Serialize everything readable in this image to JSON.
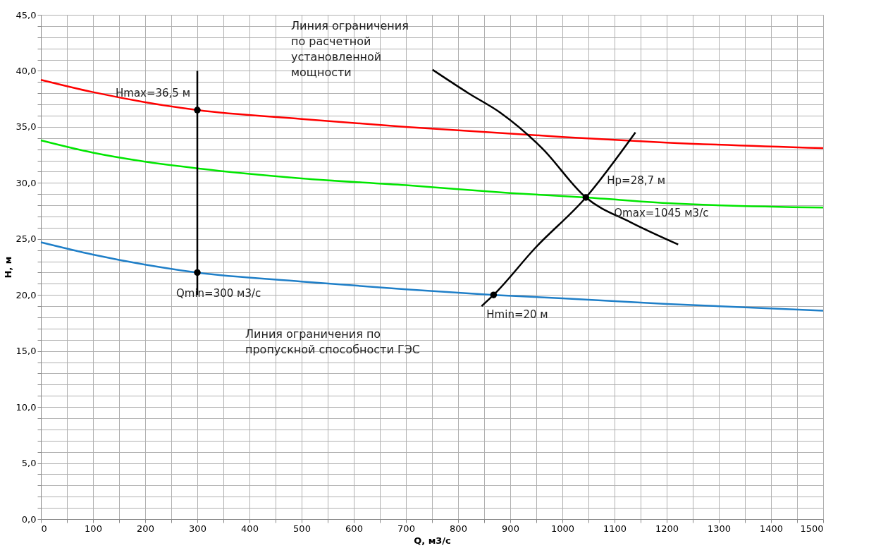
{
  "chart_data": {
    "type": "line",
    "xlabel": "Q, м3/с",
    "ylabel": "H, м",
    "xlim": [
      0,
      1500
    ],
    "ylim": [
      0,
      45
    ],
    "grid": true,
    "line_style": "solid",
    "xticks": [
      0,
      {
        "value": 50,
        "label": null
      },
      100,
      {
        "value": 150,
        "label": null
      },
      200,
      {
        "value": 250,
        "label": null
      },
      300,
      {
        "value": 350,
        "label": null
      },
      400,
      {
        "value": 450,
        "label": null
      },
      500,
      {
        "value": 550,
        "label": null
      },
      600,
      {
        "value": 650,
        "label": null
      },
      700,
      {
        "value": 750,
        "label": null
      },
      800,
      {
        "value": 850,
        "label": null
      },
      900,
      {
        "value": 950,
        "label": null
      },
      1000,
      {
        "value": 1050,
        "label": null
      },
      1100,
      {
        "value": 1150,
        "label": null
      },
      1200,
      {
        "value": 1250,
        "label": null
      },
      1300,
      {
        "value": 1350,
        "label": null
      },
      1400,
      {
        "value": 1450,
        "label": null
      },
      1500
    ],
    "yticks": [
      {
        "value": 0,
        "label": "0,0"
      },
      {
        "value": 1,
        "label": null
      },
      {
        "value": 2,
        "label": null
      },
      {
        "value": 3,
        "label": null
      },
      {
        "value": 4,
        "label": null
      },
      {
        "value": 5,
        "label": "5,0"
      },
      {
        "value": 6,
        "label": null
      },
      {
        "value": 7,
        "label": null
      },
      {
        "value": 8,
        "label": null
      },
      {
        "value": 9,
        "label": null
      },
      {
        "value": 10,
        "label": "10,0"
      },
      {
        "value": 11,
        "label": null
      },
      {
        "value": 12,
        "label": null
      },
      {
        "value": 13,
        "label": null
      },
      {
        "value": 14,
        "label": null
      },
      {
        "value": 15,
        "label": "15,0"
      },
      {
        "value": 16,
        "label": null
      },
      {
        "value": 17,
        "label": null
      },
      {
        "value": 18,
        "label": null
      },
      {
        "value": 19,
        "label": null
      },
      {
        "value": 20,
        "label": "20,0"
      },
      {
        "value": 21,
        "label": null
      },
      {
        "value": 22,
        "label": null
      },
      {
        "value": 23,
        "label": null
      },
      {
        "value": 24,
        "label": null
      },
      {
        "value": 25,
        "label": "25,0"
      },
      {
        "value": 26,
        "label": null
      },
      {
        "value": 27,
        "label": null
      },
      {
        "value": 28,
        "label": null
      },
      {
        "value": 29,
        "label": null
      },
      {
        "value": 30,
        "label": "30,0"
      },
      {
        "value": 31,
        "label": null
      },
      {
        "value": 32,
        "label": null
      },
      {
        "value": 33,
        "label": null
      },
      {
        "value": 34,
        "label": null
      },
      {
        "value": 35,
        "label": "35,0"
      },
      {
        "value": 36,
        "label": null
      },
      {
        "value": 37,
        "label": null
      },
      {
        "value": 38,
        "label": null
      },
      {
        "value": 39,
        "label": null
      },
      {
        "value": 40,
        "label": "40,0"
      },
      {
        "value": 41,
        "label": null
      },
      {
        "value": 42,
        "label": null
      },
      {
        "value": 43,
        "label": null
      },
      {
        "value": 44,
        "label": null
      },
      {
        "value": 45,
        "label": "45,0"
      }
    ],
    "series": [
      {
        "color": "#ff0000",
        "x": [
          0,
          100,
          200,
          300,
          500,
          700,
          1000,
          1200,
          1500
        ],
        "values": [
          39.2,
          38.1,
          37.2,
          36.5,
          35.7,
          35.0,
          34.1,
          33.6,
          33.1
        ]
      },
      {
        "color": "#00e600",
        "x": [
          0,
          100,
          200,
          300,
          500,
          700,
          900,
          1045,
          1200,
          1500
        ],
        "values": [
          33.8,
          32.7,
          31.9,
          31.3,
          30.4,
          29.8,
          29.1,
          28.7,
          28.2,
          27.8
        ]
      },
      {
        "color": "#1f7fc8",
        "x": [
          0,
          100,
          200,
          300,
          500,
          700,
          868,
          1000,
          1200,
          1500
        ],
        "values": [
          24.7,
          23.6,
          22.7,
          22.0,
          21.2,
          20.5,
          20.0,
          19.7,
          19.2,
          18.6
        ]
      },
      {
        "color": "#000000",
        "x": [
          300,
          300
        ],
        "values": [
          20,
          40
        ]
      },
      {
        "color": "#000000",
        "x": [
          751,
          820,
          880,
          961,
          1045,
          1130,
          1222
        ],
        "values": [
          40.1,
          38.0,
          36.3,
          33.1,
          28.7,
          26.5,
          24.5
        ]
      },
      {
        "color": "#000000",
        "x": [
          845,
          868,
          948,
          1045,
          1140
        ],
        "values": [
          19.0,
          20.0,
          24.2,
          28.7,
          34.5
        ]
      },
      {
        "type": "scatter",
        "color": "#000000",
        "x": [
          300,
          300,
          1045,
          868
        ],
        "values": [
          36.5,
          22.0,
          28.7,
          20.0
        ]
      }
    ],
    "annotations": [
      {
        "text": "Hmax=36,5 м",
        "x": 300,
        "y": 36.5
      },
      {
        "text": "Qmin=300 м3/с",
        "x": 300,
        "y": 22.0
      },
      {
        "text": "Hp=28,7 м",
        "x": 1045,
        "y": 28.7
      },
      {
        "text": "Qmax=1045 м3/с",
        "x": 1045,
        "y": 28.7
      },
      {
        "text": "Hmin=20 м",
        "x": 868,
        "y": 20.0
      },
      "Линия ограничения\nпо расчетной\nустановленной\nмощности",
      "Линия ограничения по\nпропускной способности ГЭС"
    ]
  }
}
